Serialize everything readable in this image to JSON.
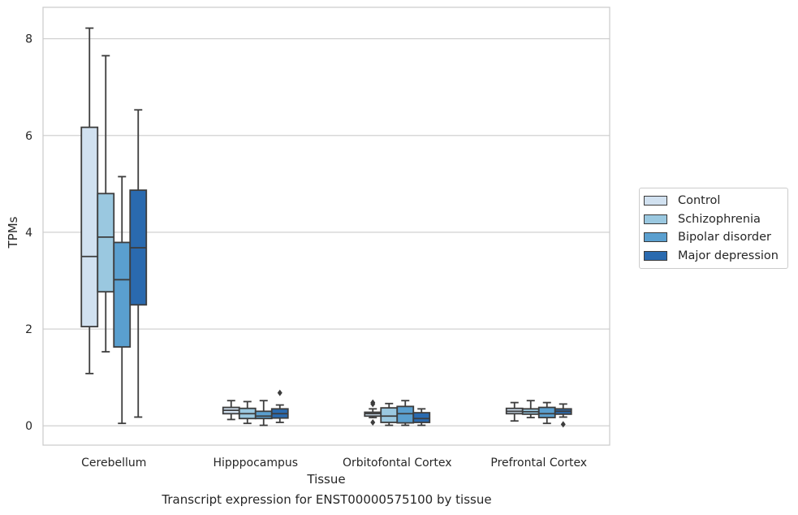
{
  "chart_data": {
    "type": "box",
    "title": "",
    "caption": "Transcript expression for ENST00000575100 by tissue",
    "xlabel": "Tissue",
    "ylabel": "TPMs",
    "ylim": [
      -0.4,
      8.65
    ],
    "yticks": [
      0,
      2,
      4,
      6,
      8
    ],
    "grid": "horizontal",
    "legend_position": "right",
    "categories": [
      "Cerebellum",
      "Hipppocampus",
      "Orbitofontal Cortex",
      "Prefrontal Cortex"
    ],
    "series": [
      {
        "name": "Control",
        "color": "#d1e1f0",
        "boxes": [
          {
            "whislo": 1.08,
            "q1": 2.05,
            "med": 3.5,
            "q3": 6.17,
            "whishi": 8.22,
            "fliers": []
          },
          {
            "whislo": 0.13,
            "q1": 0.25,
            "med": 0.32,
            "q3": 0.38,
            "whishi": 0.52,
            "fliers": []
          },
          {
            "whislo": 0.17,
            "q1": 0.2,
            "med": 0.25,
            "q3": 0.28,
            "whishi": 0.35,
            "fliers": [
              0.07,
              0.45,
              0.48
            ]
          },
          {
            "whislo": 0.1,
            "q1": 0.25,
            "med": 0.3,
            "q3": 0.36,
            "whishi": 0.48,
            "fliers": []
          }
        ]
      },
      {
        "name": "Schizophrenia",
        "color": "#9ac8e0",
        "boxes": [
          {
            "whislo": 1.53,
            "q1": 2.77,
            "med": 3.9,
            "q3": 4.8,
            "whishi": 7.65,
            "fliers": []
          },
          {
            "whislo": 0.05,
            "q1": 0.15,
            "med": 0.25,
            "q3": 0.36,
            "whishi": 0.5,
            "fliers": []
          },
          {
            "whislo": 0.01,
            "q1": 0.07,
            "med": 0.2,
            "q3": 0.37,
            "whishi": 0.46,
            "fliers": []
          },
          {
            "whislo": 0.17,
            "q1": 0.24,
            "med": 0.29,
            "q3": 0.35,
            "whishi": 0.52,
            "fliers": []
          }
        ]
      },
      {
        "name": "Bipolar disorder",
        "color": "#5a9fcf",
        "boxes": [
          {
            "whislo": 0.05,
            "q1": 1.63,
            "med": 3.02,
            "q3": 3.79,
            "whishi": 5.15,
            "fliers": []
          },
          {
            "whislo": 0.01,
            "q1": 0.15,
            "med": 0.2,
            "q3": 0.3,
            "whishi": 0.52,
            "fliers": []
          },
          {
            "whislo": 0.01,
            "q1": 0.06,
            "med": 0.25,
            "q3": 0.4,
            "whishi": 0.52,
            "fliers": []
          },
          {
            "whislo": 0.05,
            "q1": 0.17,
            "med": 0.25,
            "q3": 0.38,
            "whishi": 0.48,
            "fliers": []
          }
        ]
      },
      {
        "name": "Major depression",
        "color": "#2a6aaf",
        "boxes": [
          {
            "whislo": 0.18,
            "q1": 2.5,
            "med": 3.68,
            "q3": 4.87,
            "whishi": 6.53,
            "fliers": []
          },
          {
            "whislo": 0.07,
            "q1": 0.16,
            "med": 0.25,
            "q3": 0.35,
            "whishi": 0.43,
            "fliers": [
              0.68
            ]
          },
          {
            "whislo": 0.01,
            "q1": 0.07,
            "med": 0.15,
            "q3": 0.27,
            "whishi": 0.35,
            "fliers": []
          },
          {
            "whislo": 0.18,
            "q1": 0.24,
            "med": 0.3,
            "q3": 0.35,
            "whishi": 0.45,
            "fliers": [
              0.03
            ]
          }
        ]
      }
    ]
  }
}
